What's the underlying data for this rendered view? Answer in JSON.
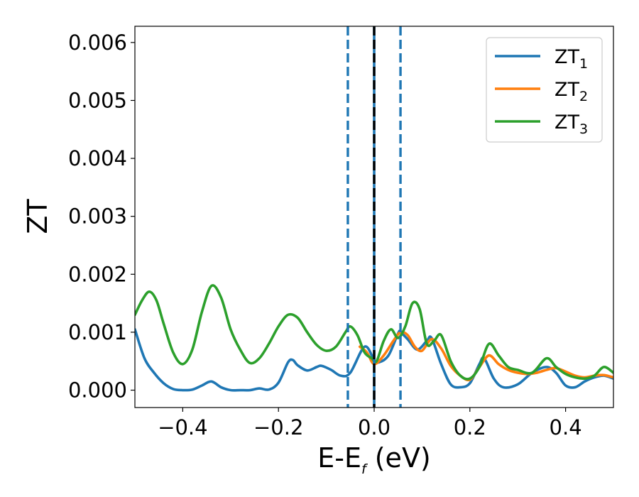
{
  "chart_data": {
    "type": "line",
    "xlabel_main": "E-E",
    "xlabel_sub": "f",
    "xlabel_unit": " (eV)",
    "ylabel": "ZT",
    "xlim": [
      -0.5,
      0.5
    ],
    "ylim": [
      -0.0003,
      0.00628
    ],
    "xticks": [
      -0.4,
      -0.2,
      0.0,
      0.2,
      0.4
    ],
    "xtick_labels": [
      "−0.4",
      "−0.2",
      "0.0",
      "0.2",
      "0.4"
    ],
    "yticks": [
      0.0,
      0.001,
      0.002,
      0.003,
      0.004,
      0.005,
      0.006
    ],
    "ytick_labels": [
      "0.000",
      "0.001",
      "0.002",
      "0.003",
      "0.004",
      "0.005",
      "0.006"
    ],
    "grid": false,
    "legend_position": "top-right",
    "vlines": [
      {
        "x": -0.055,
        "style": "dashed",
        "color": "#1f77b4"
      },
      {
        "x": 0.0,
        "style": "solid",
        "color": "#1f77b4"
      },
      {
        "x": 0.0,
        "style": "dashed",
        "color": "#000000"
      },
      {
        "x": 0.055,
        "style": "dashed",
        "color": "#1f77b4"
      }
    ],
    "series": [
      {
        "name_main": "ZT",
        "name_sub": "1",
        "color": "#1f77b4",
        "x": [
          -0.5,
          -0.48,
          -0.46,
          -0.44,
          -0.42,
          -0.4,
          -0.38,
          -0.36,
          -0.34,
          -0.32,
          -0.3,
          -0.28,
          -0.26,
          -0.24,
          -0.22,
          -0.2,
          -0.18,
          -0.17,
          -0.16,
          -0.14,
          -0.12,
          -0.11,
          -0.09,
          -0.07,
          -0.05,
          -0.02,
          0.0,
          0.01,
          0.03,
          0.05,
          0.055,
          0.07,
          0.09,
          0.11,
          0.12,
          0.14,
          0.16,
          0.18,
          0.2,
          0.22,
          0.23,
          0.25,
          0.27,
          0.3,
          0.33,
          0.36,
          0.38,
          0.4,
          0.42,
          0.44,
          0.46,
          0.48,
          0.5
        ],
        "y": [
          0.00105,
          0.00055,
          0.0003,
          0.00012,
          2e-05,
          0.0,
          1e-05,
          8e-05,
          0.00015,
          5e-05,
          0.0,
          0.0,
          0.0,
          3e-05,
          1e-05,
          0.00013,
          0.00048,
          0.00052,
          0.00043,
          0.00034,
          0.0004,
          0.00042,
          0.00035,
          0.00025,
          0.0003,
          0.00075,
          0.00052,
          0.00048,
          0.0006,
          0.00098,
          0.001,
          0.00088,
          0.0007,
          0.00085,
          0.0009,
          0.00045,
          0.0001,
          5e-05,
          0.00012,
          0.00045,
          0.00055,
          0.0002,
          5e-05,
          0.0001,
          0.0003,
          0.0004,
          0.0003,
          8e-05,
          5e-05,
          0.00015,
          0.00022,
          0.00025,
          0.0002
        ]
      },
      {
        "name_main": "ZT",
        "name_sub": "2",
        "color": "#ff7f0e",
        "x": [
          -0.03,
          -0.015,
          0.0,
          0.02,
          0.04,
          0.055,
          0.07,
          0.085,
          0.1,
          0.12,
          0.14,
          0.16,
          0.18,
          0.2,
          0.22,
          0.24,
          0.26,
          0.28,
          0.3,
          0.32,
          0.34,
          0.36,
          0.38,
          0.4,
          0.42,
          0.44,
          0.46,
          0.48,
          0.5
        ],
        "y": [
          0.00075,
          0.00065,
          0.00045,
          0.0006,
          0.00085,
          0.001,
          0.00095,
          0.00075,
          0.00068,
          0.00088,
          0.00072,
          0.00042,
          0.00025,
          0.00018,
          0.0004,
          0.0006,
          0.00045,
          0.00035,
          0.0003,
          0.00028,
          0.0003,
          0.00035,
          0.00038,
          0.00032,
          0.00025,
          0.00022,
          0.00025,
          0.00026,
          0.00022
        ]
      },
      {
        "name_main": "ZT",
        "name_sub": "3",
        "color": "#2ca02c",
        "x": [
          -0.5,
          -0.485,
          -0.47,
          -0.455,
          -0.44,
          -0.42,
          -0.4,
          -0.38,
          -0.36,
          -0.34,
          -0.32,
          -0.3,
          -0.28,
          -0.26,
          -0.24,
          -0.22,
          -0.2,
          -0.18,
          -0.16,
          -0.14,
          -0.12,
          -0.1,
          -0.08,
          -0.06,
          -0.05,
          -0.035,
          -0.02,
          -0.005,
          0.005,
          0.02,
          0.035,
          0.05,
          0.065,
          0.08,
          0.095,
          0.11,
          0.125,
          0.14,
          0.16,
          0.18,
          0.2,
          0.22,
          0.24,
          0.26,
          0.28,
          0.3,
          0.33,
          0.36,
          0.38,
          0.4,
          0.42,
          0.44,
          0.46,
          0.48,
          0.5
        ],
        "y": [
          0.0013,
          0.00155,
          0.0017,
          0.00155,
          0.00115,
          0.00065,
          0.00045,
          0.0007,
          0.00135,
          0.0018,
          0.0016,
          0.00105,
          0.0007,
          0.00047,
          0.00055,
          0.0008,
          0.0011,
          0.0013,
          0.00125,
          0.001,
          0.00078,
          0.00068,
          0.00075,
          0.001,
          0.0011,
          0.00095,
          0.00065,
          0.00055,
          0.0005,
          0.00085,
          0.00105,
          0.0009,
          0.0011,
          0.0015,
          0.0014,
          0.0008,
          0.00085,
          0.00095,
          0.0005,
          0.00025,
          0.0002,
          0.0004,
          0.0008,
          0.0006,
          0.0004,
          0.00035,
          0.0003,
          0.00055,
          0.0004,
          0.00028,
          0.00022,
          0.0002,
          0.00025,
          0.0004,
          0.0003
        ]
      }
    ]
  }
}
